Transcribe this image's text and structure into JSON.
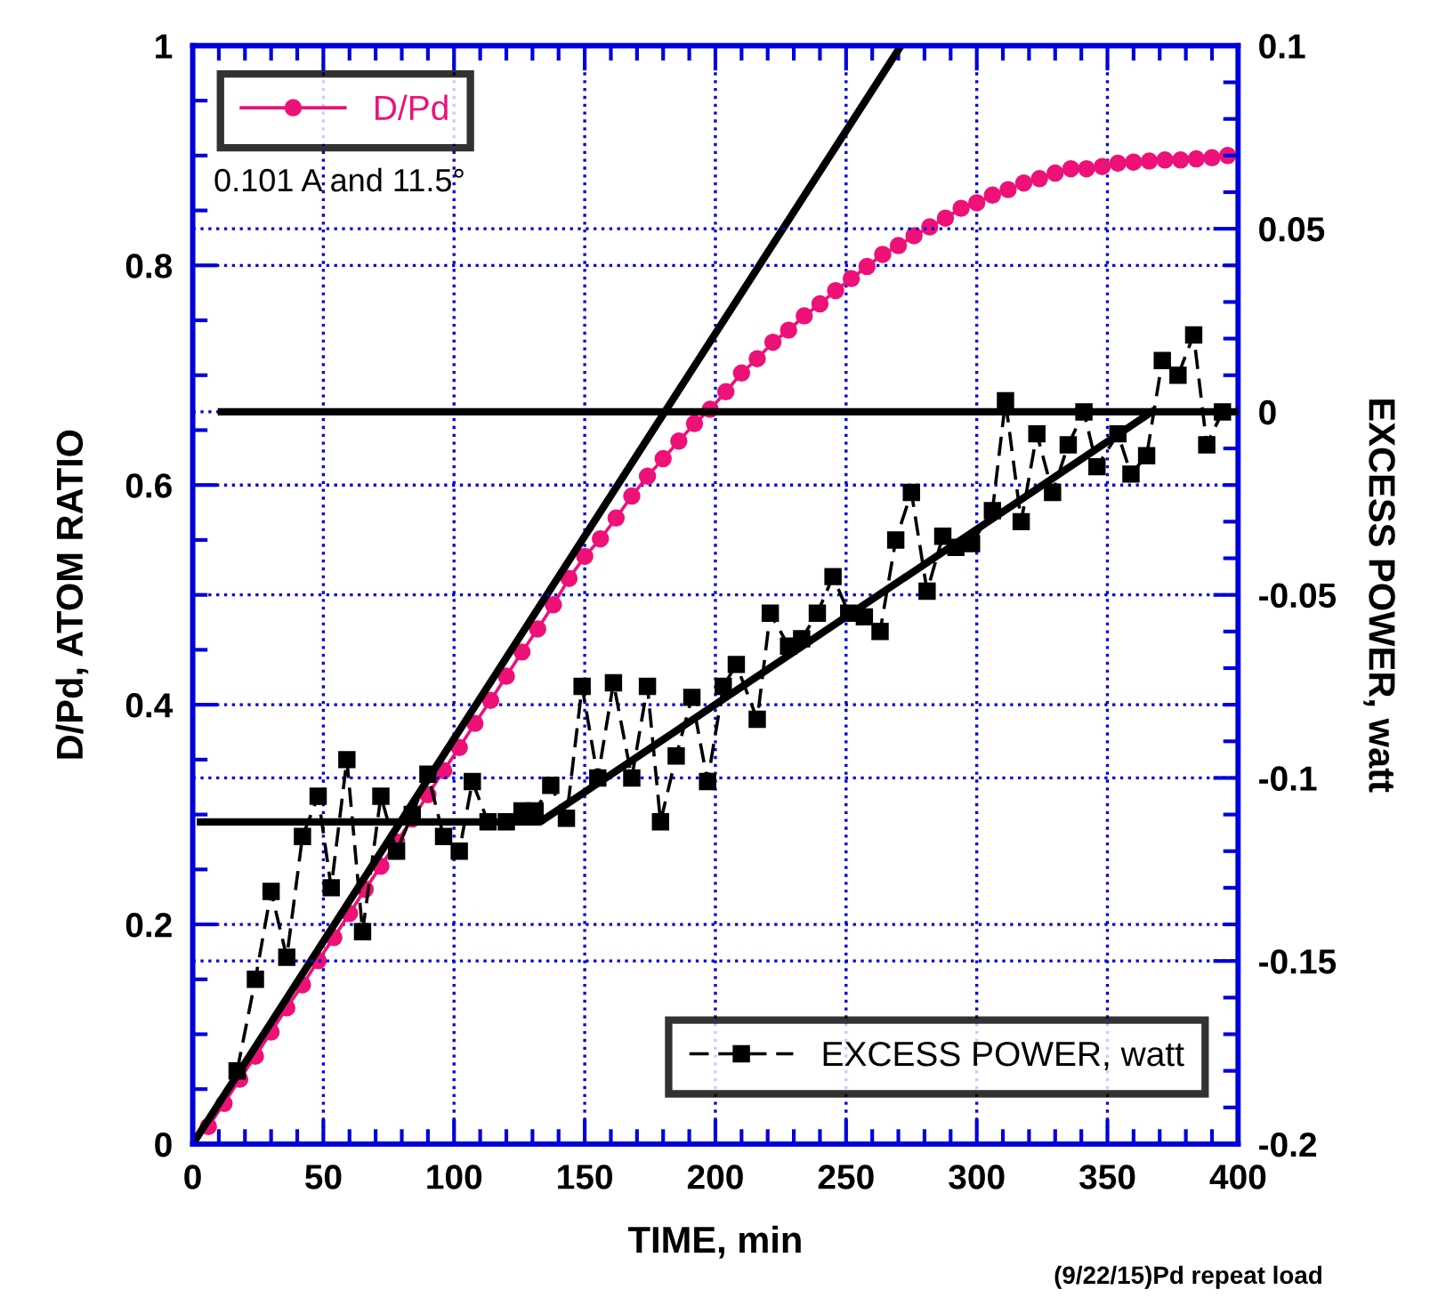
{
  "chart_data": {
    "type": "line",
    "xlabel": "TIME, min",
    "ylabel": "D/Pd, ATOM RATIO",
    "y2label": "EXCESS POWER, watt",
    "annotations": [
      "0.101 A and 11.5°",
      "(9/22/15)Pd repeat load"
    ],
    "xlim": [
      0,
      400
    ],
    "xticks": [
      0,
      50,
      100,
      150,
      200,
      250,
      300,
      350,
      400
    ],
    "ylim": [
      0,
      1
    ],
    "yticks": [
      0,
      0.2,
      0.4,
      0.6,
      0.8,
      1
    ],
    "y2lim": [
      -0.2,
      0.1
    ],
    "y2ticks": [
      -0.2,
      -0.15,
      -0.1,
      -0.05,
      0,
      0.05,
      0.1
    ],
    "grid": true,
    "legend": "top left",
    "series": [
      {
        "name": "D/Pd",
        "color": "#ee1177",
        "marker": "circle",
        "line_style": "solid",
        "x": [
          6,
          12,
          18,
          24,
          30,
          36,
          42,
          48,
          54,
          60,
          66,
          72,
          78,
          84,
          90,
          96,
          102,
          108,
          114,
          120,
          126,
          132,
          138,
          144,
          150,
          156,
          162,
          168,
          174,
          180,
          186,
          192,
          198,
          204,
          210,
          216,
          222,
          228,
          234,
          240,
          246,
          252,
          258,
          264,
          270,
          276,
          282,
          288,
          294,
          300,
          306,
          312,
          318,
          324,
          330,
          336,
          342,
          348,
          354,
          360,
          366,
          372,
          378,
          384,
          390,
          396
        ],
        "values": [
          0.016,
          0.037,
          0.059,
          0.08,
          0.102,
          0.124,
          0.145,
          0.167,
          0.188,
          0.21,
          0.232,
          0.253,
          0.275,
          0.296,
          0.318,
          0.34,
          0.361,
          0.383,
          0.404,
          0.426,
          0.448,
          0.469,
          0.491,
          0.515,
          0.535,
          0.551,
          0.57,
          0.59,
          0.608,
          0.624,
          0.64,
          0.656,
          0.669,
          0.685,
          0.702,
          0.715,
          0.73,
          0.741,
          0.754,
          0.765,
          0.777,
          0.788,
          0.799,
          0.81,
          0.818,
          0.827,
          0.835,
          0.843,
          0.852,
          0.857,
          0.864,
          0.869,
          0.875,
          0.879,
          0.884,
          0.888,
          0.888,
          0.89,
          0.893,
          0.894,
          0.895,
          0.896,
          0.896,
          0.897,
          0.898,
          0.9
        ]
      },
      {
        "name": "EXCESS POWER, watt",
        "color": "#000000",
        "marker": "square",
        "line_style": "dashed",
        "axis": "y2",
        "x": [
          17,
          24,
          30,
          36,
          42,
          48,
          53,
          59,
          65,
          72,
          78,
          84,
          90,
          96,
          102,
          107,
          113,
          120,
          126,
          131,
          137,
          143,
          149,
          155,
          161,
          168,
          174,
          179,
          185,
          191,
          197,
          203,
          208,
          216,
          221,
          228,
          233,
          239,
          245,
          251,
          257,
          263,
          269,
          275,
          281,
          287,
          292,
          298,
          306,
          311,
          317,
          323,
          329,
          335,
          341,
          346,
          354,
          359,
          365,
          371,
          377,
          383,
          388,
          394
        ],
        "values": [
          -0.18,
          -0.155,
          -0.131,
          -0.149,
          -0.116,
          -0.105,
          -0.13,
          -0.095,
          -0.142,
          -0.105,
          -0.12,
          -0.11,
          -0.099,
          -0.116,
          -0.12,
          -0.101,
          -0.112,
          -0.112,
          -0.109,
          -0.109,
          -0.102,
          -0.111,
          -0.075,
          -0.1,
          -0.074,
          -0.1,
          -0.075,
          -0.112,
          -0.094,
          -0.078,
          -0.101,
          -0.075,
          -0.069,
          -0.084,
          -0.055,
          -0.064,
          -0.062,
          -0.055,
          -0.045,
          -0.055,
          -0.056,
          -0.06,
          -0.035,
          -0.022,
          -0.049,
          -0.034,
          -0.037,
          -0.036,
          -0.027,
          0.003,
          -0.03,
          -0.006,
          -0.022,
          -0.009,
          0.0,
          -0.015,
          -0.006,
          -0.017,
          -0.012,
          0.014,
          0.01,
          0.021,
          -0.009,
          0.0
        ]
      },
      {
        "color": "#000000",
        "marker": "none",
        "line_style": "solid",
        "x": [
          0,
          271
        ],
        "values": [
          0,
          1
        ]
      },
      {
        "color": "#000000",
        "marker": "none",
        "line_style": "solid",
        "axis": "y2",
        "x": [
          3,
          133,
          367
        ],
        "values": [
          -0.112,
          -0.112,
          0
        ]
      },
      {
        "color": "#000000",
        "marker": "none",
        "line_style": "solid",
        "axis": "y2",
        "x": [
          11,
          400
        ],
        "values": [
          0,
          0
        ]
      }
    ]
  }
}
